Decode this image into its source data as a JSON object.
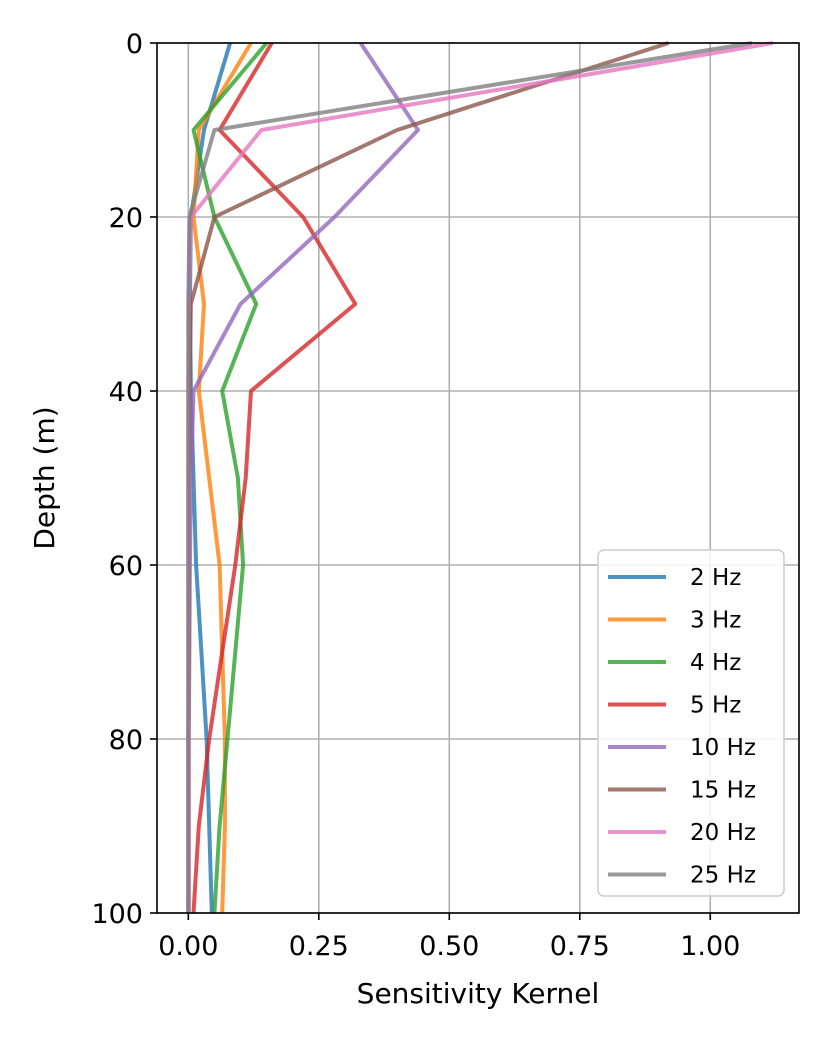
{
  "chart_data": {
    "type": "line",
    "orientation": "depth-profile",
    "xlabel": "Sensitivity Kernel",
    "ylabel": "Depth (m)",
    "xlim": [
      -0.06,
      1.17
    ],
    "ylim": [
      100,
      0
    ],
    "y_inverted": true,
    "xticks": [
      0.0,
      0.25,
      0.5,
      0.75,
      1.0
    ],
    "xtick_labels": [
      "0.00",
      "0.25",
      "0.50",
      "0.75",
      "1.00"
    ],
    "yticks": [
      0,
      20,
      40,
      60,
      80,
      100
    ],
    "ytick_labels": [
      "0",
      "20",
      "40",
      "60",
      "80",
      "100"
    ],
    "grid": true,
    "legend_position": "lower-right",
    "depth": [
      0,
      10,
      20,
      30,
      40,
      50,
      60,
      70,
      80,
      90,
      100
    ],
    "series": [
      {
        "name": "2 Hz",
        "color": "#1f77b4",
        "values": [
          0.08,
          0.03,
          0.005,
          0.003,
          0.005,
          0.01,
          0.015,
          0.025,
          0.035,
          0.04,
          0.045
        ]
      },
      {
        "name": "3 Hz",
        "color": "#ff7f0e",
        "values": [
          0.12,
          0.02,
          0.01,
          0.03,
          0.02,
          0.04,
          0.06,
          0.065,
          0.07,
          0.07,
          0.065
        ]
      },
      {
        "name": "4 Hz",
        "color": "#2ca02c",
        "values": [
          0.15,
          0.01,
          0.05,
          0.13,
          0.065,
          0.095,
          0.105,
          0.09,
          0.075,
          0.06,
          0.05
        ]
      },
      {
        "name": "5 Hz",
        "color": "#d62728",
        "values": [
          0.16,
          0.06,
          0.22,
          0.32,
          0.12,
          0.11,
          0.09,
          0.065,
          0.04,
          0.02,
          0.01
        ]
      },
      {
        "name": "10 Hz",
        "color": "#9467bd",
        "values": [
          0.33,
          0.44,
          0.28,
          0.1,
          0.01,
          0.005,
          0.003,
          0.002,
          0.001,
          0.001,
          0.001
        ]
      },
      {
        "name": "15 Hz",
        "color": "#8c564b",
        "values": [
          0.92,
          0.4,
          0.05,
          0.005,
          0.002,
          0.001,
          0.001,
          0.001,
          0.0,
          0.0,
          0.0
        ]
      },
      {
        "name": "20 Hz",
        "color": "#e377c2",
        "values": [
          1.12,
          0.14,
          0.005,
          0.001,
          0.0,
          0.0,
          0.0,
          0.0,
          0.0,
          0.0,
          0.0
        ]
      },
      {
        "name": "25 Hz",
        "color": "#7f7f7f",
        "values": [
          1.08,
          0.05,
          0.002,
          0.0,
          0.0,
          0.0,
          0.0,
          0.0,
          0.0,
          0.0,
          0.0
        ]
      }
    ]
  }
}
